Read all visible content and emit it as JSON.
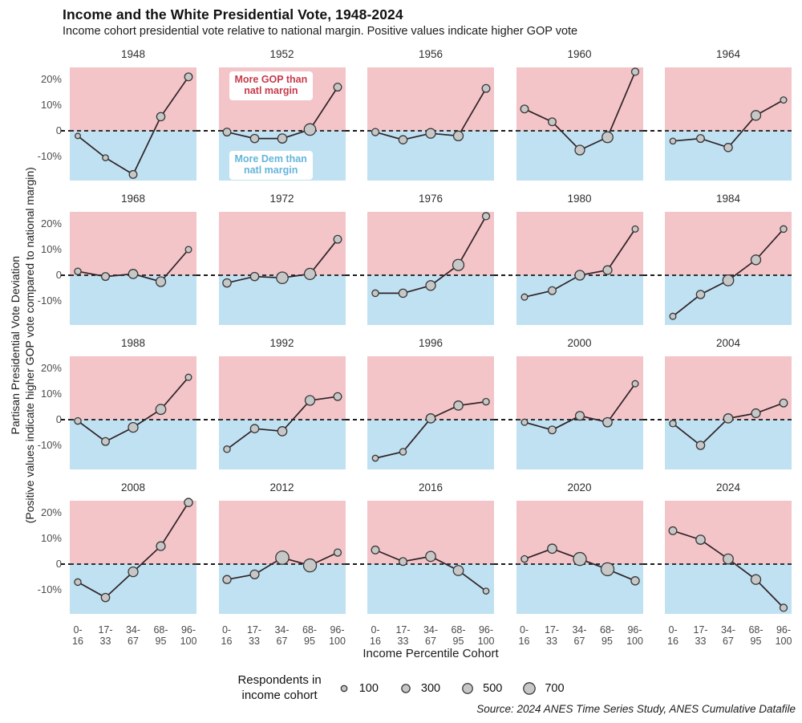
{
  "header": {
    "title": "Income and the White Presidential Vote, 1948-2024",
    "subtitle": "Income cohort presidential vote relative to national margin. Positive values indicate higher GOP vote"
  },
  "chart_data": {
    "type": "line",
    "layout": "small-multiples 4x5 grid, one panel per election year",
    "categories": [
      "0-16",
      "17-33",
      "34-67",
      "68-95",
      "96-100"
    ],
    "x_tick_lines": [
      [
        "0-",
        "16"
      ],
      [
        "17-",
        "33"
      ],
      [
        "34-",
        "67"
      ],
      [
        "68-",
        "95"
      ],
      [
        "96-",
        "100"
      ]
    ],
    "xlabel": "Income Percentile Cohort",
    "ylabel_line1": "Partisan Presidential Vote Deviation",
    "ylabel_line2": "(Positive values indicate higher GOP vote compared to national margin)",
    "y_ticks": [
      {
        "label": "20%",
        "value": 20
      },
      {
        "label": "10%",
        "value": 10
      },
      {
        "label": "0",
        "value": 0
      },
      {
        "label": "-10%",
        "value": -10
      }
    ],
    "ylim": [
      -19.7,
      24.7
    ],
    "zero_line_style": "dashed",
    "grid": false,
    "units": "percent deviation from national margin",
    "size_encoding": "point size = respondents in income cohort",
    "panels": [
      {
        "year": "1948",
        "values": [
          -2,
          -10.5,
          -17,
          5.5,
          21
        ],
        "respondents": [
          60,
          100,
          250,
          300,
          250
        ]
      },
      {
        "year": "1952",
        "values": [
          -0.5,
          -3,
          -3,
          0.5,
          17
        ],
        "respondents": [
          250,
          300,
          400,
          700,
          250
        ]
      },
      {
        "year": "1956",
        "values": [
          -0.5,
          -3.5,
          -1,
          -2,
          16.5
        ],
        "respondents": [
          200,
          300,
          450,
          450,
          250
        ]
      },
      {
        "year": "1960",
        "values": [
          8.5,
          3.5,
          -7.5,
          -2.5,
          23
        ],
        "respondents": [
          250,
          250,
          450,
          600,
          200
        ]
      },
      {
        "year": "1964",
        "values": [
          -4,
          -3,
          -6.5,
          6,
          12
        ],
        "respondents": [
          100,
          250,
          300,
          450,
          120
        ]
      },
      {
        "year": "1968",
        "values": [
          1.5,
          -0.5,
          0.5,
          -2.5,
          10
        ],
        "respondents": [
          150,
          250,
          400,
          450,
          120
        ]
      },
      {
        "year": "1972",
        "values": [
          -3,
          -0.5,
          -1,
          0.5,
          14
        ],
        "respondents": [
          300,
          300,
          700,
          650,
          250
        ]
      },
      {
        "year": "1976",
        "values": [
          -7,
          -7,
          -4,
          4,
          23
        ],
        "respondents": [
          150,
          300,
          450,
          650,
          200
        ]
      },
      {
        "year": "1980",
        "values": [
          -8.5,
          -6,
          0,
          2,
          18
        ],
        "respondents": [
          120,
          250,
          450,
          350,
          120
        ]
      },
      {
        "year": "1984",
        "values": [
          -16,
          -7.5,
          -2,
          6,
          18
        ],
        "respondents": [
          120,
          300,
          600,
          450,
          150
        ]
      },
      {
        "year": "1988",
        "values": [
          -0.5,
          -8.5,
          -3,
          4,
          16.5
        ],
        "respondents": [
          150,
          250,
          450,
          500,
          120
        ]
      },
      {
        "year": "1992",
        "values": [
          -11.5,
          -3.5,
          -4.5,
          7.5,
          9
        ],
        "respondents": [
          150,
          300,
          400,
          450,
          250
        ]
      },
      {
        "year": "1996",
        "values": [
          -15,
          -12.5,
          0.5,
          5.5,
          7
        ],
        "respondents": [
          100,
          150,
          400,
          400,
          150
        ]
      },
      {
        "year": "2000",
        "values": [
          -1,
          -4,
          1.5,
          -1,
          14
        ],
        "respondents": [
          120,
          250,
          350,
          400,
          120
        ]
      },
      {
        "year": "2004",
        "values": [
          -1.5,
          -10,
          0.5,
          2.5,
          6.5
        ],
        "respondents": [
          150,
          300,
          400,
          350,
          250
        ]
      },
      {
        "year": "2008",
        "values": [
          -7,
          -13,
          -3,
          7,
          24
        ],
        "respondents": [
          150,
          300,
          450,
          350,
          300
        ]
      },
      {
        "year": "2012",
        "values": [
          -6,
          -4,
          2.5,
          -0.5,
          4.5
        ],
        "respondents": [
          280,
          350,
          950,
          900,
          200
        ]
      },
      {
        "year": "2016",
        "values": [
          5.5,
          1,
          3,
          -2.5,
          -10.5
        ],
        "respondents": [
          250,
          250,
          500,
          500,
          100
        ]
      },
      {
        "year": "2020",
        "values": [
          2,
          6,
          2,
          -2,
          -6.5
        ],
        "respondents": [
          150,
          400,
          900,
          900,
          300
        ]
      },
      {
        "year": "2024",
        "values": [
          13,
          9.5,
          2,
          -6,
          -17
        ],
        "respondents": [
          250,
          400,
          500,
          450,
          200
        ]
      }
    ],
    "annotations": {
      "panel_year": "1952",
      "gop": {
        "line1": "More GOP than",
        "line2": "natl margin",
        "color": "#c73a4a"
      },
      "dem": {
        "line1": "More Dem than",
        "line2": "natl margin",
        "color": "#64b5da"
      }
    },
    "size_legend": {
      "label_line1": "Respondents in",
      "label_line2": "income cohort",
      "items": [
        {
          "label": "100",
          "value": 100
        },
        {
          "label": "300",
          "value": 300
        },
        {
          "label": "500",
          "value": 500
        },
        {
          "label": "700",
          "value": 700
        }
      ]
    },
    "legend_position": "bottom",
    "colors": {
      "gop_region": "#f3c5c8",
      "dem_region": "#bfe1f1",
      "point_fill": "#c7c7c7",
      "point_stroke": "#383838",
      "line": "#2f2228",
      "zero_line": "#1a1a1a"
    }
  },
  "source": "Source: 2024 ANES Time Series Study, ANES Cumulative Datafile"
}
